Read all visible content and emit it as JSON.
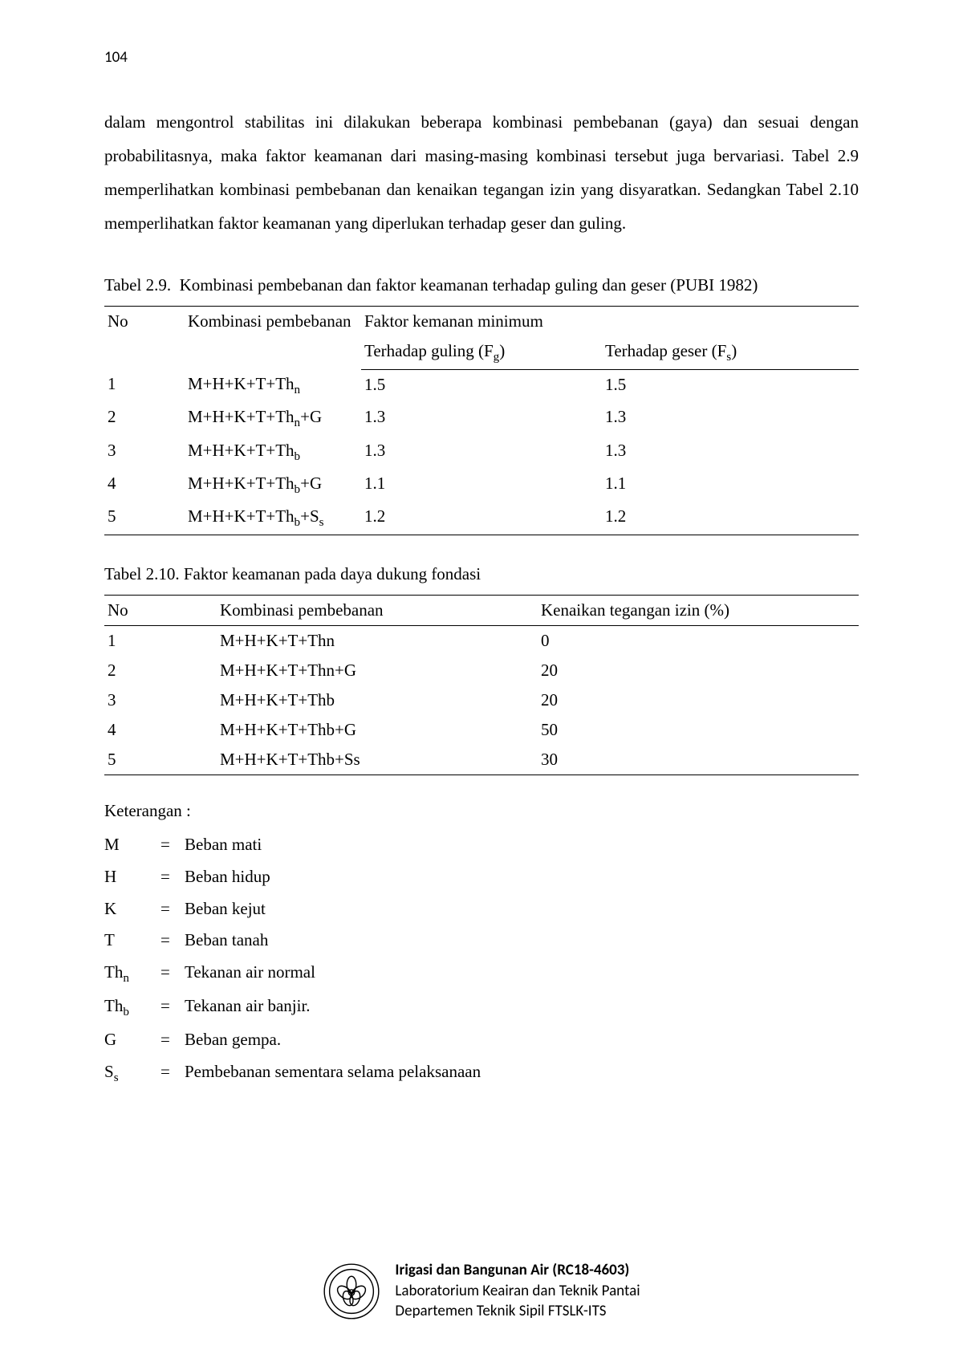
{
  "page_number": "104",
  "paragraph": "dalam mengontrol stabilitas ini dilakukan beberapa kombinasi pembebanan (gaya) dan sesuai dengan probabilitasnya, maka faktor keamanan dari masing-masing kombinasi tersebut juga bervariasi.  Tabel 2.9  memperlihatkan kombinasi pembebanan dan kenaikan tegangan izin yang disyaratkan. Sedangkan Tabel 2.10 memperlihatkan faktor keamanan yang diperlukan terhadap geser dan guling.",
  "table29": {
    "caption_label": "Tabel 2.9.",
    "caption_text": "Kombinasi pembebanan dan faktor keamanan terhadap guling dan geser  (PUBI 1982)",
    "header_no": "No",
    "header_comb": "Kombinasi pembebanan",
    "header_factor": "Faktor kemanan minimum",
    "header_guling_pre": "Terhadap guling (F",
    "header_guling_sub": "g",
    "header_guling_post": ")",
    "header_geser_pre": "Terhadap geser (F",
    "header_geser_sub": "s",
    "header_geser_post": ")",
    "rows": [
      {
        "no": "1",
        "comb_pre": "M+H+K+T+Th",
        "comb_sub": "n",
        "comb_post": "",
        "fg": "1.5",
        "fs": "1.5"
      },
      {
        "no": "2",
        "comb_pre": "M+H+K+T+Th",
        "comb_sub": "n",
        "comb_post": "+G",
        "fg": "1.3",
        "fs": "1.3"
      },
      {
        "no": "3",
        "comb_pre": "M+H+K+T+Th",
        "comb_sub": "b",
        "comb_post": "",
        "fg": "1.3",
        "fs": "1.3"
      },
      {
        "no": "4",
        "comb_pre": "M+H+K+T+Th",
        "comb_sub": "b",
        "comb_post": "+G",
        "fg": "1.1",
        "fs": "1.1"
      },
      {
        "no": "5",
        "comb_pre": "M+H+K+T+Th",
        "comb_sub": "b",
        "comb_post": "+S",
        "comb_sub2": "s",
        "fg": "1.2",
        "fs": "1.2"
      }
    ]
  },
  "table210": {
    "caption": "Tabel  2.10. Faktor keamanan pada daya dukung fondasi",
    "header_no": "No",
    "header_comb": "Kombinasi pembebanan",
    "header_inc": "Kenaikan tegangan izin (%)",
    "rows": [
      {
        "no": "1",
        "comb": "M+H+K+T+Thn",
        "inc": "0"
      },
      {
        "no": "2",
        "comb": "M+H+K+T+Thn+G",
        "inc": "20"
      },
      {
        "no": "3",
        "comb": "M+H+K+T+Thb",
        "inc": "20"
      },
      {
        "no": "4",
        "comb": "M+H+K+T+Thb+G",
        "inc": "50"
      },
      {
        "no": "5",
        "comb": "M+H+K+T+Thb+Ss",
        "inc": "30"
      }
    ]
  },
  "legend": {
    "intro": "Keterangan :",
    "items": [
      {
        "sym_pre": "M",
        "sym_sub": "",
        "desc": "Beban mati"
      },
      {
        "sym_pre": "H",
        "sym_sub": "",
        "desc": "Beban hidup"
      },
      {
        "sym_pre": "K",
        "sym_sub": "",
        "desc": "Beban kejut"
      },
      {
        "sym_pre": "T",
        "sym_sub": "",
        "desc": "Beban tanah"
      },
      {
        "sym_pre": "Th",
        "sym_sub": "n",
        "desc": "Tekanan air normal"
      },
      {
        "sym_pre": "Th",
        "sym_sub": "b",
        "desc": "Tekanan air banjir."
      },
      {
        "sym_pre": "G",
        "sym_sub": "",
        "desc": "Beban gempa."
      },
      {
        "sym_pre": "S",
        "sym_sub": "s",
        "desc": "Pembebanan sementara selama pelaksanaan"
      }
    ]
  },
  "footer": {
    "line1": "Irigasi dan Bangunan Air (RC18-4603)",
    "line2": "Laboratorium Keairan dan Teknik Pantai",
    "line3": "Departemen Teknik Sipil FTSLK-ITS"
  }
}
